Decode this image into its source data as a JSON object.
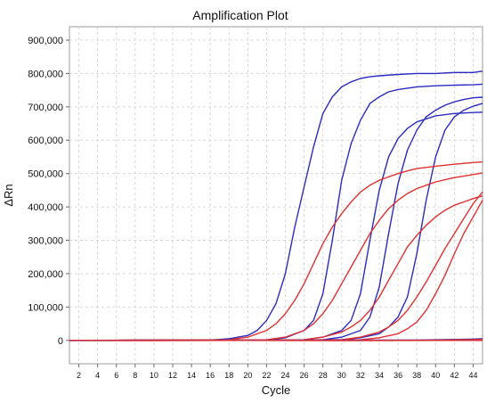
{
  "chart_data": {
    "type": "line",
    "title": "Amplification Plot",
    "xlabel": "Cycle",
    "ylabel": "ΔRn",
    "xlim": [
      1,
      45
    ],
    "ylim": [
      -70000,
      940000
    ],
    "xticks": [
      2,
      4,
      6,
      8,
      10,
      12,
      14,
      16,
      18,
      20,
      22,
      24,
      26,
      28,
      30,
      32,
      34,
      36,
      38,
      40,
      42,
      44
    ],
    "yticks": [
      0,
      100000,
      200000,
      300000,
      400000,
      500000,
      600000,
      700000,
      800000,
      900000
    ],
    "ytick_labels": [
      "0",
      "100,000",
      "200,000",
      "300,000",
      "400,000",
      "500,000",
      "600,000",
      "700,000",
      "800,000",
      "900,000"
    ],
    "grid": true,
    "series_style": "sigmoid amplification curves",
    "series": [
      {
        "color": "#2b2bbf",
        "points": [
          [
            1,
            0
          ],
          [
            16,
            1000
          ],
          [
            18,
            5000
          ],
          [
            20,
            15000
          ],
          [
            21,
            30000
          ],
          [
            22,
            60000
          ],
          [
            23,
            110000
          ],
          [
            24,
            200000
          ],
          [
            25,
            340000
          ],
          [
            26,
            460000
          ],
          [
            27,
            580000
          ],
          [
            28,
            680000
          ],
          [
            29,
            730000
          ],
          [
            30,
            760000
          ],
          [
            31,
            775000
          ],
          [
            32,
            785000
          ],
          [
            33,
            790000
          ],
          [
            34,
            793000
          ],
          [
            36,
            797000
          ],
          [
            38,
            800000
          ],
          [
            40,
            800000
          ],
          [
            42,
            803000
          ],
          [
            44,
            803000
          ],
          [
            45,
            807000
          ]
        ]
      },
      {
        "color": "#2b2bbf",
        "points": [
          [
            1,
            0
          ],
          [
            22,
            1000
          ],
          [
            24,
            8000
          ],
          [
            26,
            30000
          ],
          [
            27,
            60000
          ],
          [
            28,
            140000
          ],
          [
            29,
            300000
          ],
          [
            30,
            480000
          ],
          [
            31,
            590000
          ],
          [
            32,
            660000
          ],
          [
            33,
            710000
          ],
          [
            34,
            730000
          ],
          [
            35,
            745000
          ],
          [
            36,
            752000
          ],
          [
            38,
            760000
          ],
          [
            40,
            763000
          ],
          [
            42,
            765000
          ],
          [
            44,
            766000
          ],
          [
            45,
            768000
          ]
        ]
      },
      {
        "color": "#2b2bbf",
        "points": [
          [
            1,
            0
          ],
          [
            26,
            2000
          ],
          [
            28,
            10000
          ],
          [
            30,
            30000
          ],
          [
            31,
            60000
          ],
          [
            32,
            140000
          ],
          [
            33,
            300000
          ],
          [
            34,
            450000
          ],
          [
            35,
            550000
          ],
          [
            36,
            605000
          ],
          [
            37,
            635000
          ],
          [
            38,
            655000
          ],
          [
            40,
            673000
          ],
          [
            42,
            680000
          ],
          [
            44,
            683000
          ],
          [
            45,
            684000
          ]
        ]
      },
      {
        "color": "#2b2bbf",
        "points": [
          [
            1,
            0
          ],
          [
            28,
            2000
          ],
          [
            30,
            10000
          ],
          [
            32,
            30000
          ],
          [
            33,
            70000
          ],
          [
            34,
            160000
          ],
          [
            35,
            320000
          ],
          [
            36,
            470000
          ],
          [
            37,
            570000
          ],
          [
            38,
            630000
          ],
          [
            39,
            670000
          ],
          [
            40,
            690000
          ],
          [
            41,
            705000
          ],
          [
            42,
            715000
          ],
          [
            43,
            722000
          ],
          [
            44,
            727000
          ],
          [
            45,
            729000
          ]
        ]
      },
      {
        "color": "#2b2bbf",
        "points": [
          [
            1,
            0
          ],
          [
            30,
            2000
          ],
          [
            32,
            8000
          ],
          [
            34,
            20000
          ],
          [
            35,
            40000
          ],
          [
            36,
            70000
          ],
          [
            37,
            130000
          ],
          [
            38,
            260000
          ],
          [
            39,
            420000
          ],
          [
            40,
            550000
          ],
          [
            41,
            630000
          ],
          [
            42,
            670000
          ],
          [
            43,
            690000
          ],
          [
            44,
            702000
          ],
          [
            45,
            710000
          ]
        ]
      },
      {
        "color": "#e03030",
        "points": [
          [
            1,
            0
          ],
          [
            18,
            2000
          ],
          [
            20,
            10000
          ],
          [
            22,
            30000
          ],
          [
            23,
            50000
          ],
          [
            24,
            80000
          ],
          [
            25,
            120000
          ],
          [
            26,
            170000
          ],
          [
            27,
            230000
          ],
          [
            28,
            290000
          ],
          [
            29,
            340000
          ],
          [
            30,
            380000
          ],
          [
            31,
            415000
          ],
          [
            32,
            445000
          ],
          [
            33,
            465000
          ],
          [
            34,
            480000
          ],
          [
            35,
            490000
          ],
          [
            36,
            500000
          ],
          [
            37,
            508000
          ],
          [
            38,
            515000
          ],
          [
            40,
            522000
          ],
          [
            42,
            528000
          ],
          [
            44,
            533000
          ],
          [
            45,
            535000
          ]
        ]
      },
      {
        "color": "#e03030",
        "points": [
          [
            1,
            0
          ],
          [
            22,
            2000
          ],
          [
            24,
            10000
          ],
          [
            26,
            30000
          ],
          [
            27,
            50000
          ],
          [
            28,
            80000
          ],
          [
            29,
            120000
          ],
          [
            30,
            170000
          ],
          [
            31,
            220000
          ],
          [
            32,
            270000
          ],
          [
            33,
            320000
          ],
          [
            34,
            360000
          ],
          [
            35,
            395000
          ],
          [
            36,
            420000
          ],
          [
            37,
            440000
          ],
          [
            38,
            455000
          ],
          [
            39,
            465000
          ],
          [
            40,
            475000
          ],
          [
            42,
            488000
          ],
          [
            44,
            497000
          ],
          [
            45,
            502000
          ]
        ]
      },
      {
        "color": "#e03030",
        "points": [
          [
            1,
            0
          ],
          [
            26,
            2000
          ],
          [
            28,
            10000
          ],
          [
            30,
            25000
          ],
          [
            31,
            40000
          ],
          [
            32,
            60000
          ],
          [
            33,
            90000
          ],
          [
            34,
            130000
          ],
          [
            35,
            180000
          ],
          [
            36,
            230000
          ],
          [
            37,
            280000
          ],
          [
            38,
            315000
          ],
          [
            39,
            345000
          ],
          [
            40,
            370000
          ],
          [
            41,
            390000
          ],
          [
            42,
            405000
          ],
          [
            43,
            415000
          ],
          [
            44,
            425000
          ],
          [
            45,
            433000
          ]
        ]
      },
      {
        "color": "#e03030",
        "points": [
          [
            1,
            0
          ],
          [
            30,
            2000
          ],
          [
            32,
            10000
          ],
          [
            34,
            25000
          ],
          [
            35,
            40000
          ],
          [
            36,
            60000
          ],
          [
            37,
            90000
          ],
          [
            38,
            130000
          ],
          [
            39,
            175000
          ],
          [
            40,
            225000
          ],
          [
            41,
            275000
          ],
          [
            42,
            320000
          ],
          [
            43,
            365000
          ],
          [
            44,
            410000
          ],
          [
            45,
            445000
          ]
        ]
      },
      {
        "color": "#e03030",
        "points": [
          [
            1,
            0
          ],
          [
            32,
            2000
          ],
          [
            34,
            8000
          ],
          [
            36,
            20000
          ],
          [
            37,
            35000
          ],
          [
            38,
            55000
          ],
          [
            39,
            90000
          ],
          [
            40,
            140000
          ],
          [
            41,
            195000
          ],
          [
            42,
            260000
          ],
          [
            43,
            320000
          ],
          [
            44,
            370000
          ],
          [
            45,
            420000
          ]
        ]
      },
      {
        "color": "#2b2bbf",
        "points": [
          [
            1,
            0
          ],
          [
            38,
            1000
          ],
          [
            40,
            2000
          ],
          [
            42,
            3000
          ],
          [
            44,
            4000
          ],
          [
            45,
            5000
          ]
        ]
      },
      {
        "color": "#e03030",
        "points": [
          [
            1,
            0
          ],
          [
            36,
            500
          ],
          [
            40,
            1000
          ],
          [
            42,
            2000
          ],
          [
            44,
            2500
          ],
          [
            45,
            3000
          ]
        ]
      },
      {
        "color": "#2b2bbf",
        "points": [
          [
            1,
            -500
          ],
          [
            10,
            0
          ],
          [
            20,
            0
          ],
          [
            30,
            0
          ],
          [
            40,
            0
          ],
          [
            45,
            0
          ]
        ]
      },
      {
        "color": "#e03030",
        "points": [
          [
            1,
            0
          ],
          [
            10,
            -500
          ],
          [
            20,
            0
          ],
          [
            30,
            -500
          ],
          [
            40,
            0
          ],
          [
            45,
            0
          ]
        ]
      }
    ]
  }
}
